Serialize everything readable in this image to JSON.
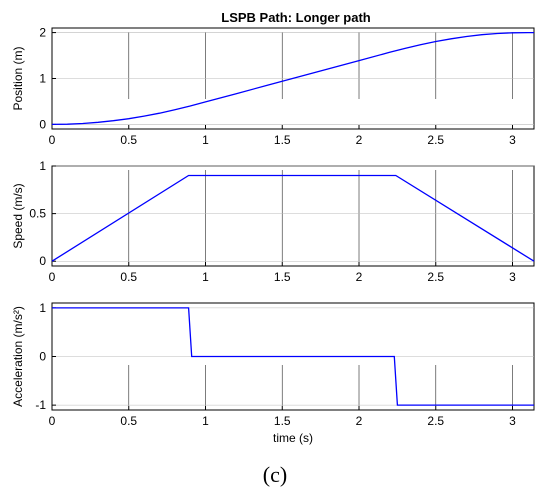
{
  "figure": {
    "title": "LSPB Path: Longer path",
    "caption": "(c)"
  },
  "chart_data": [
    {
      "type": "line",
      "title": "LSPB Path: Longer path",
      "xlabel": "",
      "ylabel": "Position (m)",
      "xlim": [
        0,
        3.14
      ],
      "ylim": [
        -0.1,
        2.1
      ],
      "xticks": [
        "0",
        "0.5",
        "1",
        "1.5",
        "2",
        "2.5",
        "3"
      ],
      "yticks": [
        "0",
        "1",
        "2"
      ],
      "yticks_values": [
        0,
        1,
        2
      ],
      "series": [
        {
          "color": "#0000ff",
          "x": [
            0,
            0.1,
            0.2,
            0.3,
            0.4,
            0.5,
            0.6,
            0.7,
            0.8,
            0.9,
            1.0,
            1.2,
            1.4,
            1.6,
            1.8,
            2.0,
            2.2,
            2.3,
            2.4,
            2.5,
            2.6,
            2.7,
            2.8,
            2.9,
            3.0,
            3.1,
            3.14
          ],
          "y": [
            0,
            0.005,
            0.02,
            0.045,
            0.08,
            0.125,
            0.18,
            0.245,
            0.32,
            0.4,
            0.49,
            0.67,
            0.85,
            1.03,
            1.21,
            1.39,
            1.57,
            1.655,
            1.735,
            1.805,
            1.865,
            1.915,
            1.955,
            1.98,
            1.995,
            2.0,
            2.0
          ]
        }
      ]
    },
    {
      "type": "line",
      "xlabel": "",
      "ylabel": "Speed (m/s)",
      "xlim": [
        0,
        3.14
      ],
      "ylim": [
        -0.05,
        1.0
      ],
      "xticks": [
        "0",
        "0.5",
        "1",
        "1.5",
        "2",
        "2.5",
        "3"
      ],
      "yticks": [
        "0",
        "0.5",
        "1"
      ],
      "yticks_values": [
        0,
        0.5,
        1
      ],
      "series": [
        {
          "color": "#0000ff",
          "x": [
            0,
            0.89,
            2.24,
            3.14
          ],
          "y": [
            0,
            0.9,
            0.9,
            0
          ]
        }
      ]
    },
    {
      "type": "line",
      "xlabel": "time (s)",
      "ylabel": "Acceleration (m/s²)",
      "xlim": [
        0,
        3.14
      ],
      "ylim": [
        -1.1,
        1.1
      ],
      "xticks": [
        "0",
        "0.5",
        "1",
        "1.5",
        "2",
        "2.5",
        "3"
      ],
      "yticks": [
        "1",
        "0",
        "-1"
      ],
      "yticks_values": [
        1,
        0,
        -1
      ],
      "series": [
        {
          "color": "#0000ff",
          "x": [
            0,
            0.89,
            0.91,
            2.23,
            2.25,
            3.14
          ],
          "y": [
            1,
            1,
            0,
            0,
            -1,
            -1
          ]
        }
      ]
    }
  ]
}
